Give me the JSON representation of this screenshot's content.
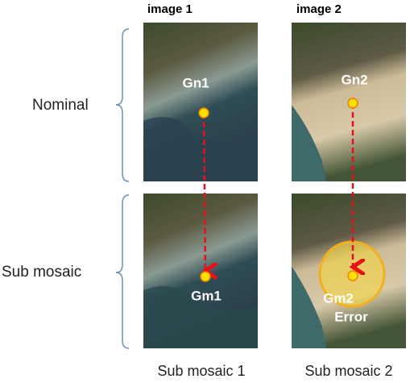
{
  "columns": {
    "0": {
      "header": "image 1",
      "caption": "Sub mosaic 1"
    },
    "1": {
      "header": "image 2",
      "caption": "Sub mosaic 2"
    }
  },
  "rows": {
    "0": {
      "label": "Nominal"
    },
    "1": {
      "label": "Sub mosaic"
    }
  },
  "points": {
    "gn1": "Gn1",
    "gn2": "Gn2",
    "gm1": "Gm1",
    "gm2": "Gm2",
    "error": "Error"
  }
}
